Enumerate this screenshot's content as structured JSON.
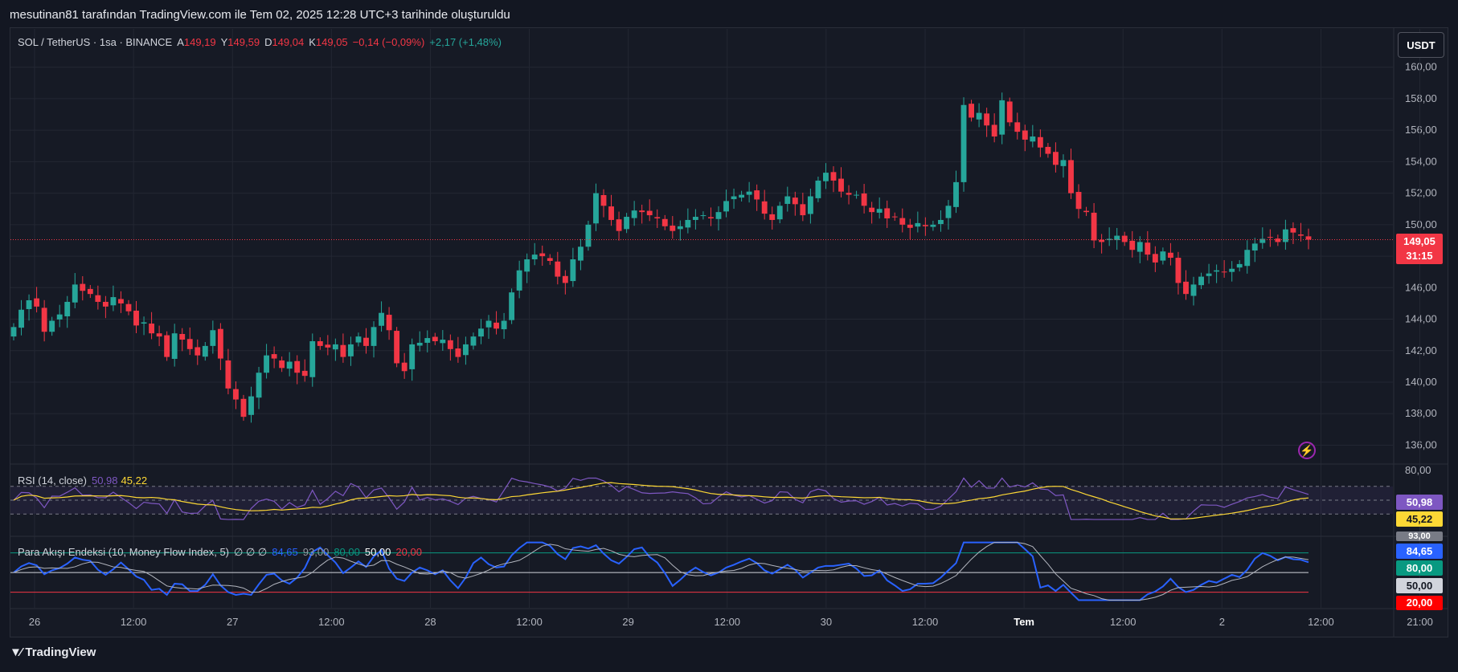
{
  "credit": "mesutinan81 tarafından TradingView.com ile Tem 02, 2025 12:28 UTC+3 tarihinde oluşturuldu",
  "brand": "TradingView",
  "currency_button": "USDT",
  "legend": {
    "symbol": "SOL / TetherUS · 1sa · BINANCE",
    "a_label": "A",
    "a_value": "149,19",
    "y_label": "Y",
    "y_value": "149,59",
    "d_label": "D",
    "d_value": "149,04",
    "k_label": "K",
    "k_value": "149,05",
    "change": "−0,14 (−0,09%)",
    "volume_change": "+2,17 (+1,48%)"
  },
  "rsi_legend": {
    "name": "RSI (14, close)",
    "value": "50,98",
    "ma": "45,22"
  },
  "mfi_legend": {
    "name": "Para Akışı Endeksi (10, Money Flow Index, 5)",
    "symbols": "∅ ∅ ∅",
    "v1": "84,65",
    "v2": "93,00",
    "v3": "80,00",
    "v4": "50,00",
    "v5": "20,00"
  },
  "price_tag": {
    "price": "149,05",
    "countdown": "31:15"
  },
  "rsi_tags": {
    "rsi": "50,98",
    "ma": "45,22"
  },
  "mfi_tags": {
    "top": "93,00",
    "mfi": "84,65",
    "upper": "80,00",
    "mid": "50,00",
    "lower": "20,00"
  },
  "colors": {
    "up": "#26a69a",
    "down": "#f23645",
    "rsi": "#7e57c2",
    "rsi_ma": "#fdd835",
    "mfi": "#2962ff"
  },
  "chart_data": [
    {
      "type": "candlestick",
      "title": "SOL / TetherUS · 1sa · BINANCE",
      "price_axis": {
        "ticks": [
          "160,00",
          "158,00",
          "156,00",
          "154,00",
          "152,00",
          "150,00",
          "148,00",
          "146,00",
          "144,00",
          "142,00",
          "140,00",
          "138,00",
          "136,00"
        ],
        "range": [
          134.8,
          160.8
        ]
      },
      "time_axis": [
        "26",
        "12:00",
        "27",
        "12:00",
        "28",
        "12:00",
        "29",
        "12:00",
        "30",
        "12:00",
        "Tem",
        "12:00",
        "2",
        "12:00",
        "21:00"
      ],
      "last_price": 149.05,
      "closes": [
        143.5,
        144.6,
        145.2,
        144.8,
        143.2,
        143.9,
        144.3,
        145.1,
        146.2,
        145.8,
        145.6,
        145.1,
        144.8,
        145.4,
        145.0,
        144.5,
        143.6,
        143.8,
        143.1,
        142.9,
        141.6,
        143.1,
        142.7,
        142.1,
        141.7,
        142.3,
        143.3,
        141.5,
        139.6,
        138.9,
        137.8,
        139.1,
        140.6,
        141.7,
        141.5,
        140.9,
        141.3,
        140.6,
        140.4,
        142.6,
        142.3,
        142.2,
        142.4,
        141.6,
        142.4,
        142.9,
        142.3,
        143.5,
        144.4,
        143.3,
        141.2,
        140.7,
        142.4,
        142.5,
        142.8,
        142.6,
        142.7,
        142.1,
        141.6,
        142.4,
        142.9,
        143.4,
        143.9,
        143.4,
        143.9,
        145.7,
        147.1,
        147.8,
        148.1,
        148.0,
        147.7,
        146.7,
        146.3,
        147.8,
        148.6,
        150.0,
        152.0,
        151.2,
        150.3,
        149.6,
        150.5,
        150.9,
        150.8,
        150.6,
        150.4,
        149.9,
        149.6,
        149.9,
        150.3,
        150.5,
        150.6,
        150.4,
        150.8,
        151.5,
        151.8,
        151.9,
        152.1,
        151.6,
        150.7,
        150.3,
        151.2,
        151.8,
        151.3,
        150.6,
        151.8,
        152.8,
        153.3,
        152.8,
        152.1,
        151.9,
        151.9,
        151.2,
        150.8,
        151.0,
        150.4,
        150.5,
        150.0,
        149.8,
        150.1,
        149.9,
        150.0,
        150.3,
        151.2,
        152.7,
        157.6,
        156.8,
        157.1,
        156.3,
        155.6,
        157.9,
        156.5,
        155.9,
        155.4,
        155.6,
        154.9,
        154.5,
        153.8,
        154.1,
        152.0,
        151.0,
        150.8,
        149.0,
        148.9,
        149.1,
        149.3,
        148.9,
        148.4,
        148.9,
        148.1,
        147.6,
        148.3,
        147.9,
        146.3,
        145.6,
        146.2,
        146.7,
        146.9,
        147.1,
        147.0,
        147.2,
        147.5,
        148.4,
        148.8,
        149.1,
        149.2,
        148.9,
        149.7,
        149.5,
        149.3,
        149.05
      ],
      "rsi_range": [
        0,
        100
      ],
      "rsi_bands": [
        30,
        50,
        70
      ],
      "mfi_bands": [
        20,
        50,
        80
      ]
    }
  ]
}
